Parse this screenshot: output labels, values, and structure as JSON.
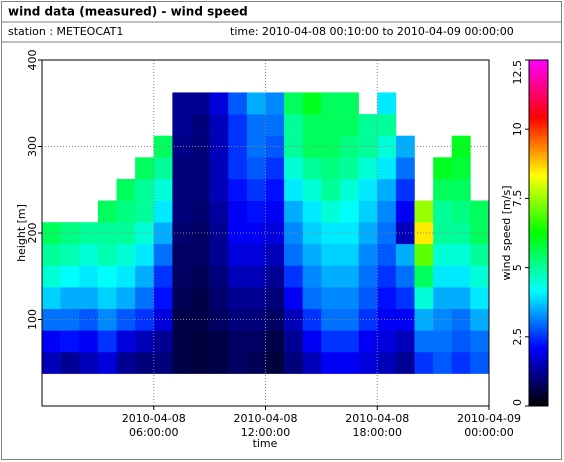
{
  "chart_data": {
    "type": "heatmap",
    "title": "wind data (measured) - wind speed",
    "station": "station : METEOCAT1",
    "period": "time: 2010-04-08 00:10:00 to 2010-04-09 00:00:00",
    "xlabel": "time",
    "ylabel": "height [m]",
    "colorbar_label": "wind speed [m/s]",
    "xlim": [
      "2010-04-08 00:00:00",
      "2010-04-09 00:00:00"
    ],
    "xticks": [
      "2010-04-08 06:00:00",
      "2010-04-08 12:00:00",
      "2010-04-08 18:00:00",
      "2010-04-09 00:00:00"
    ],
    "ylim": [
      0,
      400
    ],
    "yticks": [
      100,
      200,
      300,
      400
    ],
    "zlim": [
      0,
      12.5
    ],
    "zticks": [
      0,
      2.5,
      5,
      7.5,
      10,
      12.5
    ],
    "colormap": [
      "#000000",
      "#0000ff",
      "#00ffff",
      "#00ff00",
      "#ffff00",
      "#ff0000",
      "#ff00ff"
    ],
    "grid": true,
    "x_bins": [
      "2010-04-08 00:00:00",
      "2010-04-08 01:00:00",
      "2010-04-08 02:00:00",
      "2010-04-08 03:00:00",
      "2010-04-08 04:00:00",
      "2010-04-08 05:00:00",
      "2010-04-08 06:00:00",
      "2010-04-08 07:00:00",
      "2010-04-08 08:00:00",
      "2010-04-08 09:00:00",
      "2010-04-08 10:00:00",
      "2010-04-08 11:00:00",
      "2010-04-08 12:00:00",
      "2010-04-08 13:00:00",
      "2010-04-08 14:00:00",
      "2010-04-08 15:00:00",
      "2010-04-08 16:00:00",
      "2010-04-08 17:00:00",
      "2010-04-08 18:00:00",
      "2010-04-08 19:00:00",
      "2010-04-08 20:00:00",
      "2010-04-08 21:00:00",
      "2010-04-08 22:00:00",
      "2010-04-08 23:00:00",
      "2010-04-09 00:00:00"
    ],
    "y_bins": [
      37.5,
      62.5,
      87.5,
      112.5,
      137.5,
      162.5,
      187.5,
      212.5,
      237.5,
      262.5,
      287.5,
      312.5,
      337.5,
      362.5
    ],
    "z": [
      [
        1.5,
        1.2,
        1.5,
        1.8,
        1.2,
        1.0,
        1.0,
        0.6,
        0.5,
        0.6,
        0.8,
        0.7,
        0.5,
        1.0,
        1.5,
        2.0,
        2.0,
        1.8,
        1.5,
        1.2,
        2.5,
        2.8,
        2.5,
        2.8
      ],
      [
        2.0,
        2.2,
        2.0,
        2.5,
        1.8,
        1.5,
        1.2,
        0.6,
        0.5,
        0.6,
        0.8,
        0.8,
        0.6,
        1.2,
        2.0,
        2.5,
        2.5,
        2.0,
        1.8,
        1.5,
        3.0,
        3.0,
        2.8,
        3.0
      ],
      [
        3.0,
        3.0,
        2.8,
        3.2,
        2.8,
        2.5,
        1.8,
        0.6,
        0.6,
        0.8,
        1.0,
        1.0,
        0.8,
        1.5,
        2.5,
        3.0,
        3.0,
        2.5,
        2.0,
        2.0,
        3.5,
        3.2,
        3.0,
        3.5
      ],
      [
        3.8,
        3.5,
        3.5,
        3.8,
        3.5,
        3.0,
        2.2,
        0.7,
        0.6,
        0.9,
        1.2,
        1.2,
        1.0,
        2.0,
        3.0,
        3.2,
        3.2,
        2.8,
        2.2,
        2.5,
        4.5,
        3.5,
        3.5,
        4.0
      ],
      [
        4.5,
        4.2,
        4.0,
        4.2,
        4.0,
        3.5,
        2.5,
        0.8,
        0.7,
        1.0,
        1.5,
        1.5,
        1.2,
        2.5,
        3.2,
        3.5,
        3.5,
        3.0,
        2.5,
        3.0,
        5.5,
        4.0,
        4.0,
        4.5
      ],
      [
        5.0,
        4.8,
        4.5,
        4.8,
        4.5,
        4.0,
        3.0,
        0.8,
        0.8,
        1.2,
        1.8,
        1.8,
        1.5,
        3.0,
        3.5,
        3.8,
        3.8,
        3.2,
        2.8,
        3.5,
        7.0,
        4.5,
        4.5,
        5.0
      ],
      [
        5.5,
        5.2,
        5.0,
        5.0,
        5.0,
        4.5,
        3.5,
        0.9,
        0.8,
        1.2,
        2.0,
        2.0,
        1.8,
        3.2,
        3.8,
        4.0,
        4.0,
        3.5,
        3.0,
        1.5,
        8.5,
        5.0,
        5.0,
        5.5
      ],
      [
        null,
        null,
        null,
        5.5,
        5.2,
        5.0,
        4.0,
        1.0,
        0.9,
        1.3,
        2.0,
        2.2,
        2.0,
        3.5,
        4.0,
        4.5,
        4.2,
        3.8,
        3.2,
        2.0,
        7.5,
        5.0,
        5.2,
        5.5
      ],
      [
        null,
        null,
        null,
        null,
        5.5,
        5.0,
        4.5,
        1.0,
        1.0,
        1.5,
        2.2,
        2.5,
        2.2,
        4.0,
        4.5,
        5.0,
        4.5,
        4.0,
        3.5,
        2.5,
        null,
        5.5,
        5.5,
        null
      ],
      [
        null,
        null,
        null,
        null,
        null,
        5.5,
        5.0,
        1.0,
        1.0,
        1.5,
        2.5,
        2.8,
        2.5,
        4.5,
        5.0,
        5.2,
        5.0,
        4.5,
        4.0,
        3.0,
        null,
        6.0,
        5.8,
        null
      ],
      [
        null,
        null,
        null,
        null,
        null,
        null,
        5.5,
        1.1,
        1.0,
        1.5,
        2.5,
        3.0,
        2.8,
        5.0,
        5.5,
        5.5,
        5.2,
        5.0,
        4.5,
        3.5,
        null,
        null,
        6.0,
        null
      ],
      [
        null,
        null,
        null,
        null,
        null,
        null,
        null,
        1.2,
        1.0,
        1.5,
        2.5,
        3.0,
        3.0,
        5.0,
        5.5,
        5.5,
        5.5,
        5.0,
        5.0,
        null,
        null,
        null,
        null,
        null
      ],
      [
        null,
        null,
        null,
        null,
        null,
        null,
        null,
        1.2,
        1.2,
        1.8,
        2.8,
        3.5,
        3.2,
        5.5,
        6.0,
        5.5,
        5.5,
        null,
        4.0,
        null,
        null,
        null,
        null,
        null
      ]
    ]
  }
}
